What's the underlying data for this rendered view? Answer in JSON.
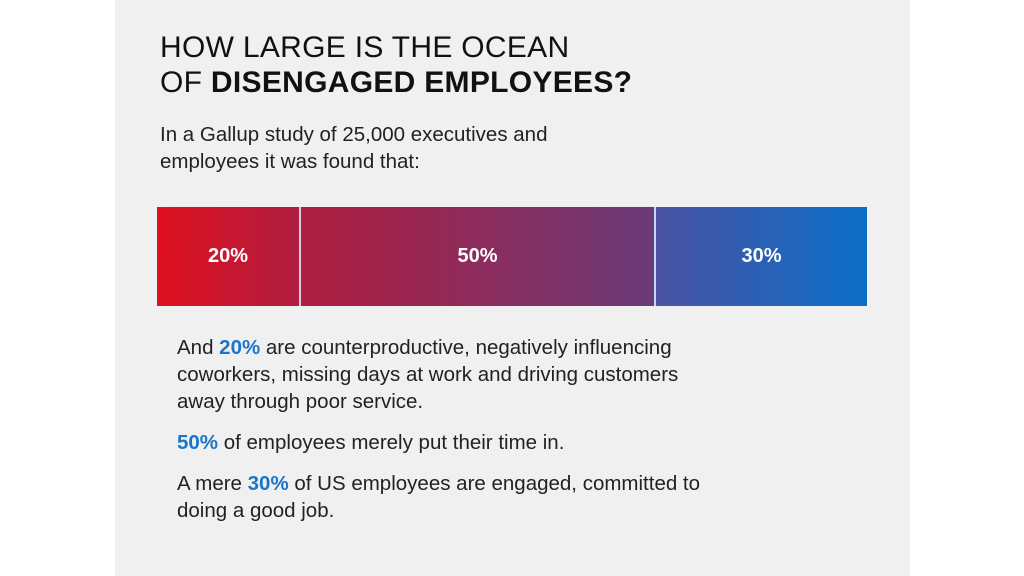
{
  "title": {
    "line1": "HOW LARGE IS THE OCEAN",
    "line2_prefix": "OF ",
    "line2_bold": "DISENGAGED EMPLOYEES?"
  },
  "intro": {
    "line1": "In a Gallup study of 25,000 executives and",
    "line2": "employees it was found that:"
  },
  "bar": {
    "segments": [
      {
        "label": "20%",
        "value": 20,
        "color_start": "#e01020",
        "color_end": "#b01e40"
      },
      {
        "label": "50%",
        "value": 50,
        "color_start": "#b01e40",
        "color_end": "#6a3a78"
      },
      {
        "label": "30%",
        "value": 30,
        "color_start": "#4a52a2",
        "color_end": "#0a6ec8"
      }
    ]
  },
  "facts": {
    "counterproductive": {
      "prefix": "And ",
      "highlight": "20%",
      "line1_rest": " are counterproductive, negatively influencing",
      "line2": "coworkers, missing days at work and driving customers",
      "line3": "away through poor service."
    },
    "time_in": {
      "highlight": "50%",
      "rest": " of employees merely put their time in."
    },
    "engaged": {
      "prefix": "A mere ",
      "highlight": "30%",
      "line1_rest": " of US employees are engaged, committed to",
      "line2": "doing a good job."
    }
  },
  "colors": {
    "highlight": "#1976c8",
    "background": "#f0f0f0"
  }
}
